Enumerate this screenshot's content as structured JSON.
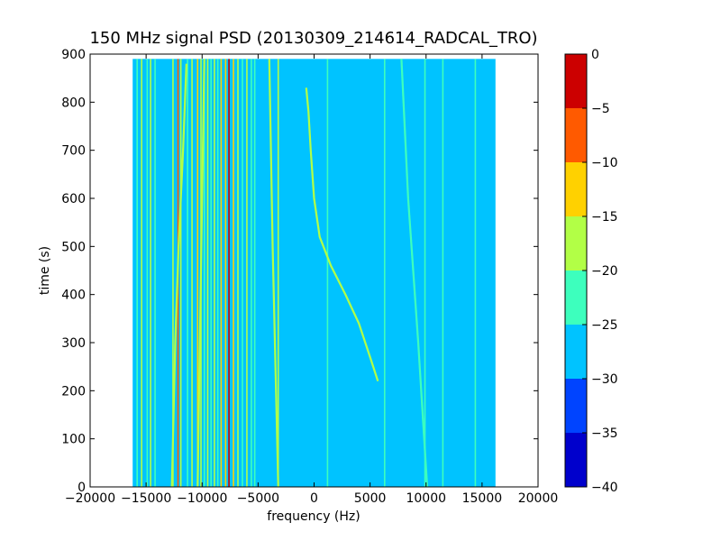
{
  "chart_data": {
    "type": "heatmap",
    "title": "150 MHz signal PSD (20130309_214614_RADCAL_TRO)",
    "xlabel": "frequency (Hz)",
    "ylabel": "time (s)",
    "xlim": [
      -20000,
      20000
    ],
    "ylim": [
      0,
      900
    ],
    "xticks": [
      -20000,
      -15000,
      -10000,
      -5000,
      0,
      5000,
      10000,
      15000,
      20000
    ],
    "xtick_labels": [
      "−20000",
      "−15000",
      "−10000",
      "−5000",
      "0",
      "5000",
      "10000",
      "15000",
      "20000"
    ],
    "yticks": [
      0,
      100,
      200,
      300,
      400,
      500,
      600,
      700,
      800,
      900
    ],
    "ytick_labels": [
      "0",
      "100",
      "200",
      "300",
      "400",
      "500",
      "600",
      "700",
      "800",
      "900"
    ],
    "data_extent": {
      "freq": [
        -16200,
        16200
      ],
      "time": [
        0,
        890
      ]
    },
    "background_level": -27.5,
    "colorbar": {
      "levels": [
        -40,
        -35,
        -30,
        -25,
        -20,
        -15,
        -10,
        -5,
        0
      ],
      "tick_labels": [
        "−40",
        "−35",
        "−30",
        "−25",
        "−20",
        "−15",
        "−10",
        "−5",
        "0"
      ],
      "colors": [
        "#0000cc",
        "#0044ff",
        "#00c3ff",
        "#3dffbd",
        "#b2ff46",
        "#ffd100",
        "#ff5a00",
        "#cc0000"
      ]
    },
    "vertical_lines": [
      {
        "freq": -15800,
        "level": -22.5
      },
      {
        "freq": -15400,
        "level": -17.5
      },
      {
        "freq": -14900,
        "level": -22.5
      },
      {
        "freq": -14600,
        "level": -17.5
      },
      {
        "freq": -14200,
        "level": -22.5
      },
      {
        "freq": -12600,
        "level": -17.5
      },
      {
        "freq": -12150,
        "level": -7.5
      },
      {
        "freq": -11900,
        "level": -17.5
      },
      {
        "freq": -11300,
        "level": -22.5
      },
      {
        "freq": -10900,
        "level": -17.5
      },
      {
        "freq": -10400,
        "level": -12.5
      },
      {
        "freq": -10100,
        "level": -17.5
      },
      {
        "freq": -9800,
        "level": -22.5
      },
      {
        "freq": -9500,
        "level": -17.5
      },
      {
        "freq": -9200,
        "level": -22.5
      },
      {
        "freq": -8900,
        "level": -17.5
      },
      {
        "freq": -8600,
        "level": -22.5
      },
      {
        "freq": -8300,
        "level": -12.5
      },
      {
        "freq": -7900,
        "level": -12.5
      },
      {
        "freq": -7600,
        "level": -2.5
      },
      {
        "freq": -7200,
        "level": -12.5
      },
      {
        "freq": -6800,
        "level": -17.5
      },
      {
        "freq": -6400,
        "level": -22.5
      },
      {
        "freq": -6000,
        "level": -17.5
      },
      {
        "freq": -5600,
        "level": -22.5
      },
      {
        "freq": -5300,
        "level": -22.5
      },
      {
        "freq": -3200,
        "level": -17.5
      },
      {
        "freq": 1200,
        "level": -22.5
      },
      {
        "freq": 6300,
        "level": -22.5
      },
      {
        "freq": 9900,
        "level": -22.5
      },
      {
        "freq": 11500,
        "level": -22.5
      },
      {
        "freq": 14400,
        "level": -22.5
      }
    ],
    "drifting_lines": [
      {
        "level": -17.5,
        "points": [
          [
            -700,
            830
          ],
          [
            -500,
            780
          ],
          [
            -300,
            700
          ],
          [
            0,
            600
          ],
          [
            500,
            520
          ],
          [
            1500,
            460
          ],
          [
            2800,
            400
          ],
          [
            4000,
            340
          ],
          [
            5000,
            270
          ],
          [
            5700,
            220
          ]
        ]
      },
      {
        "level": -17.5,
        "points": [
          [
            -11400,
            880
          ],
          [
            -11700,
            700
          ],
          [
            -12100,
            500
          ],
          [
            -12400,
            300
          ],
          [
            -12600,
            100
          ],
          [
            -12700,
            0
          ]
        ]
      },
      {
        "level": -17.5,
        "points": [
          [
            -9800,
            890
          ],
          [
            -10000,
            600
          ],
          [
            -10200,
            300
          ],
          [
            -10400,
            0
          ]
        ]
      },
      {
        "level": -17.5,
        "points": [
          [
            -4000,
            890
          ],
          [
            -3700,
            500
          ],
          [
            -3400,
            200
          ],
          [
            -3200,
            0
          ]
        ]
      },
      {
        "level": -22.5,
        "points": [
          [
            7800,
            890
          ],
          [
            8400,
            600
          ],
          [
            9300,
            300
          ],
          [
            10100,
            0
          ]
        ]
      }
    ]
  }
}
